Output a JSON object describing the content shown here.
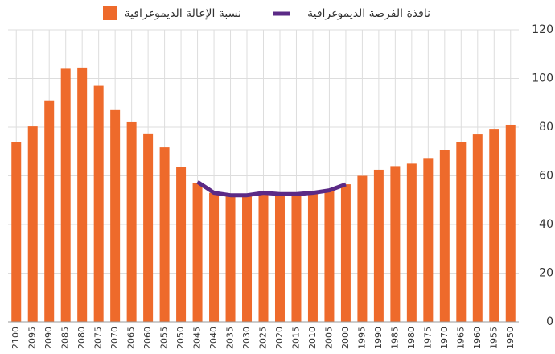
{
  "chart_data": {
    "type": "bar",
    "categories": [
      "2100",
      "2095",
      "2090",
      "2085",
      "2080",
      "2075",
      "2070",
      "2065",
      "2060",
      "2055",
      "2050",
      "2045",
      "2040",
      "2035",
      "2030",
      "2025",
      "2020",
      "2015",
      "2010",
      "2005",
      "2000",
      "1995",
      "1990",
      "1985",
      "1980",
      "1975",
      "1970",
      "1965",
      "1960",
      "1955",
      "1950"
    ],
    "series": [
      {
        "name": "نسبة الإعالة الديموغرافية",
        "color": "#ee6a2b",
        "type": "bar",
        "values": [
          74,
          80.3,
          91,
          104,
          104.5,
          97,
          87,
          82,
          77.4,
          71.7,
          63.5,
          57,
          53,
          52,
          51.5,
          52.5,
          52,
          52,
          53,
          54,
          56.5,
          60,
          62.5,
          64,
          65,
          67,
          70.7,
          74,
          77,
          79.3,
          81
        ]
      },
      {
        "name": "نافذة الفرصة الديموغرافية",
        "color": "#5b2a86",
        "type": "line",
        "values": [
          null,
          null,
          null,
          null,
          null,
          null,
          null,
          null,
          null,
          null,
          null,
          57.5,
          53,
          52,
          52,
          53,
          52.5,
          52.5,
          53,
          54,
          56.5,
          null,
          null,
          null,
          null,
          null,
          null,
          null,
          null,
          null,
          null
        ]
      }
    ],
    "ylim": [
      0,
      120
    ],
    "yticks": [
      0,
      20,
      40,
      60,
      80,
      100,
      120
    ],
    "grid": true,
    "reverse_x": true,
    "y_axis_side": "right"
  }
}
